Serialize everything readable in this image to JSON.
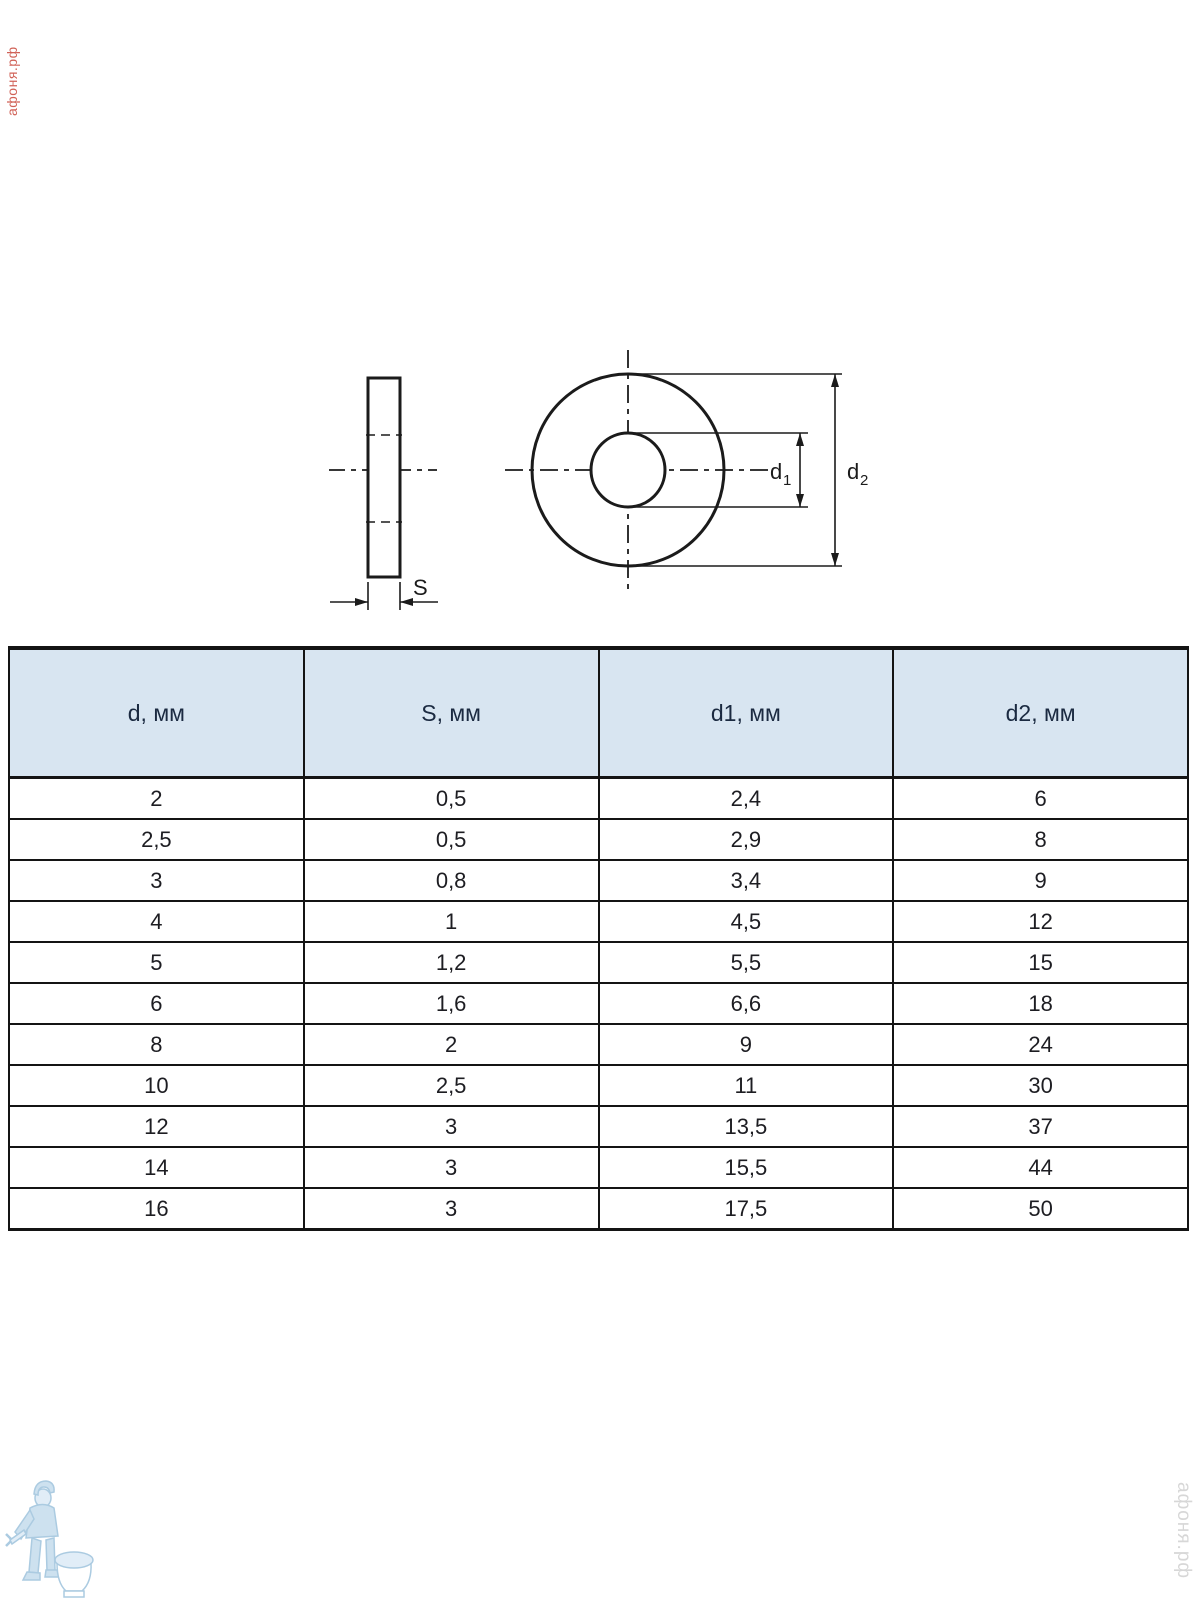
{
  "watermarks": {
    "top_left": "афоня.рф",
    "bottom_right": "афоня.рф"
  },
  "diagram": {
    "thickness_label": "S",
    "d1_label": {
      "base": "d",
      "sub": "1"
    },
    "d2_label": {
      "base": "d",
      "sub": "2"
    },
    "stroke_color": "#1b1b1b"
  },
  "table": {
    "header_bg": "#d8e5f1",
    "header_text_color": "#1b2a41",
    "headers": [
      "d, мм",
      "S, мм",
      "d1, мм",
      "d2, мм"
    ],
    "rows": [
      [
        "2",
        "0,5",
        "2,4",
        "6"
      ],
      [
        "2,5",
        "0,5",
        "2,9",
        "8"
      ],
      [
        "3",
        "0,8",
        "3,4",
        "9"
      ],
      [
        "4",
        "1",
        "4,5",
        "12"
      ],
      [
        "5",
        "1,2",
        "5,5",
        "15"
      ],
      [
        "6",
        "1,6",
        "6,6",
        "18"
      ],
      [
        "8",
        "2",
        "9",
        "24"
      ],
      [
        "10",
        "2,5",
        "11",
        "30"
      ],
      [
        "12",
        "3",
        "13,5",
        "37"
      ],
      [
        "14",
        "3",
        "15,5",
        "44"
      ],
      [
        "16",
        "3",
        "17,5",
        "50"
      ]
    ]
  }
}
